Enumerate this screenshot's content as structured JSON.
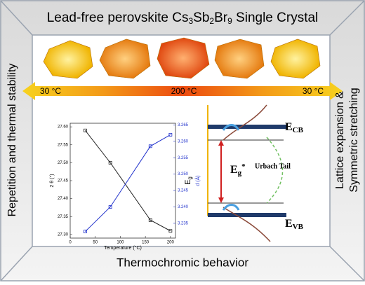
{
  "title": {
    "text": "Lead-free perovskite Cs",
    "sub1": "3",
    "mid1": "Sb",
    "sub2": "2",
    "mid2": "Br",
    "sub3": "9",
    "end": " Single Crystal"
  },
  "left_label": "Repetition and thermal stability",
  "right_label": [
    "Lattice expansion &",
    "Symmetric stretching"
  ],
  "bottom_label": "Thermochromic behavior",
  "arrow_labels": [
    "30 °C",
    "200 °C",
    "30 °C"
  ],
  "band_diagram": {
    "cb": {
      "main": "E",
      "sub": "CB"
    },
    "gap": {
      "main": "E",
      "sub": "g",
      "sup": "*"
    },
    "tail": "Urbach Tail",
    "vb": {
      "main": "E",
      "sub": "VB"
    }
  },
  "chart_data": {
    "type": "line",
    "x_label": "Temperature (°C)",
    "y_label": "2 θ (°)",
    "y2_label": "d (Å)",
    "overlay_label": {
      "main": "E",
      "sub": "g"
    },
    "x": [
      30,
      80,
      160,
      200
    ],
    "xlim": [
      0,
      210
    ],
    "xticks": [
      0,
      50,
      100,
      150,
      200
    ],
    "ylim": [
      27.29,
      27.61
    ],
    "yticks": [
      {
        "value": 27.3,
        "label": "27.30"
      },
      27.35,
      {
        "value": 27.4,
        "label": "27.40"
      },
      27.45,
      {
        "value": 27.5,
        "label": "27.50"
      },
      27.55,
      {
        "value": 27.6,
        "label": "27.60"
      }
    ],
    "y2lim": [
      3.2305,
      3.2655
    ],
    "y2ticks": [
      3.235,
      {
        "value": 3.24,
        "label": "3.240"
      },
      3.245,
      {
        "value": 3.25,
        "label": "3.250"
      },
      3.255,
      {
        "value": 3.26,
        "label": "3.260"
      },
      3.265
    ],
    "series": [
      {
        "name": "2θ",
        "color": "#222222",
        "values": [
          27.59,
          27.5,
          27.34,
          27.31
        ]
      },
      {
        "name": "d",
        "color": "#2233cc",
        "axis": "y2",
        "values": [
          3.2325,
          3.24,
          3.2585,
          3.262
        ]
      }
    ]
  }
}
